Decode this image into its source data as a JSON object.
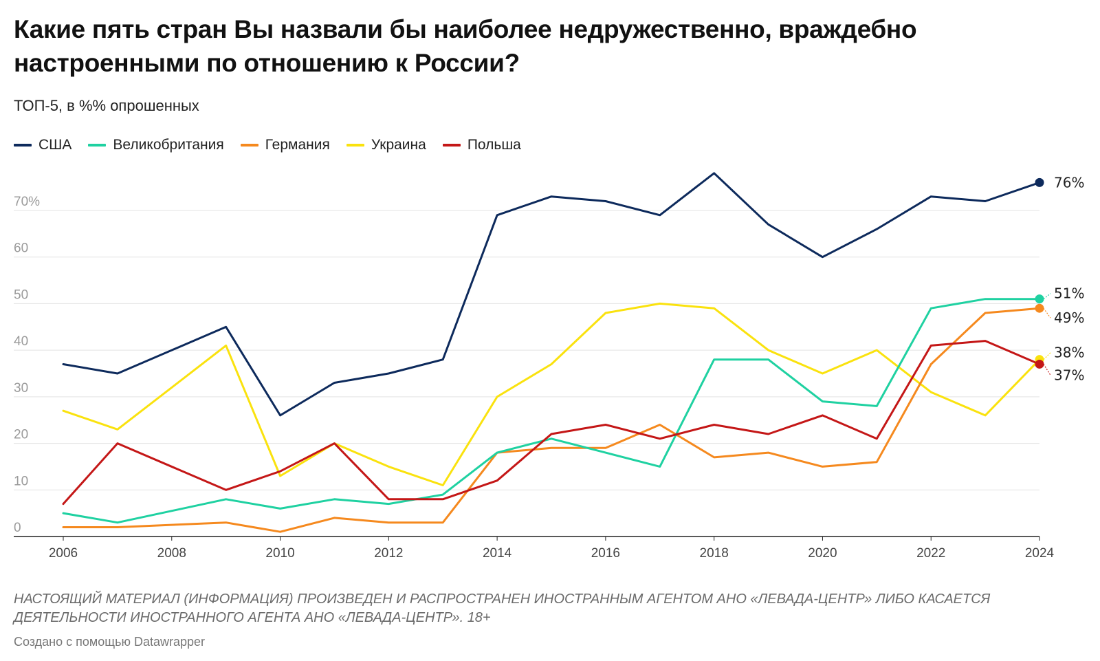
{
  "title": "Какие пять стран Вы назвали бы наиболее недружественно, враждебно настроенными по отношению к России?",
  "subtitle": "ТОП-5, в %% опрошенных",
  "footnote": "НАСТОЯЩИЙ МАТЕРИАЛ (ИНФОРМАЦИЯ) ПРОИЗВЕДЕН И РАСПРОСТРАНЕН ИНОСТРАННЫМ АГЕНТОМ АНО «ЛЕВАДА-ЦЕНТР» ЛИБО КАСАЕТСЯ ДЕЯТЕЛЬНОСТИ ИНОСТРАННОГО АГЕНТА АНО «ЛЕВАДА-ЦЕНТР». 18+",
  "credit": "Создано с помощью Datawrapper",
  "chart_data": {
    "type": "line",
    "title": "Какие пять стран Вы назвали бы наиболее недружественно, враждебно настроенными по отношению к России?",
    "subtitle": "ТОП-5, в %% опрошенных",
    "legend_position": "top-left",
    "grid": true,
    "x": [
      2006,
      2007,
      2009,
      2010,
      2011,
      2012,
      2013,
      2014,
      2015,
      2016,
      2017,
      2018,
      2019,
      2020,
      2021,
      2022,
      2023,
      2024
    ],
    "xlim": [
      2006,
      2024
    ],
    "ylim": [
      0,
      76
    ],
    "x_ticks": [
      "2006",
      "2008",
      "2010",
      "2012",
      "2014",
      "2016",
      "2018",
      "2020",
      "2022",
      "2024"
    ],
    "y_ticks": [
      "0",
      "10",
      "20",
      "30",
      "40",
      "50",
      "60",
      "70%"
    ],
    "series": [
      {
        "name": "США",
        "color": "#0d2a5c",
        "values": [
          37,
          35,
          45,
          26,
          33,
          35,
          38,
          69,
          73,
          72,
          69,
          78,
          67,
          60,
          66,
          73,
          72,
          76
        ],
        "end_label": "76%"
      },
      {
        "name": "Великобритания",
        "color": "#1fd1a1",
        "values": [
          5,
          3,
          8,
          6,
          8,
          7,
          9,
          18,
          21,
          18,
          15,
          38,
          38,
          29,
          28,
          49,
          51,
          51
        ],
        "end_label": "51%"
      },
      {
        "name": "Германия",
        "color": "#f5891e",
        "values": [
          2,
          2,
          3,
          1,
          4,
          3,
          3,
          18,
          19,
          19,
          24,
          17,
          18,
          15,
          16,
          37,
          48,
          49
        ],
        "end_label": "49%"
      },
      {
        "name": "Украина",
        "color": "#fae20e",
        "values": [
          27,
          23,
          41,
          13,
          20,
          15,
          11,
          30,
          37,
          48,
          50,
          49,
          40,
          35,
          40,
          31,
          26,
          38
        ],
        "end_label": "38%"
      },
      {
        "name": "Польша",
        "color": "#c41717",
        "values": [
          7,
          20,
          10,
          14,
          20,
          8,
          8,
          12,
          22,
          24,
          21,
          24,
          22,
          26,
          21,
          41,
          42,
          37
        ],
        "end_label": "37%"
      }
    ]
  }
}
